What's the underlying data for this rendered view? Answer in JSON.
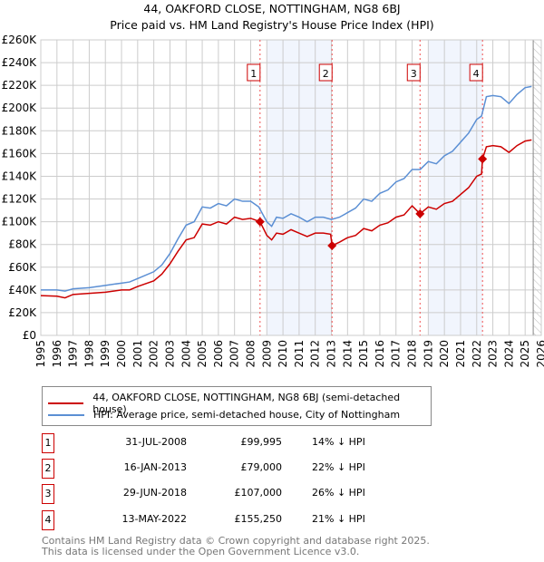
{
  "title": "44, OAKFORD CLOSE, NOTTINGHAM, NG8 6BJ",
  "subtitle": "Price paid vs. HM Land Registry's House Price Index (HPI)",
  "chart_data": {
    "type": "line",
    "xlim": [
      1995,
      2026
    ],
    "ylim": [
      0,
      260000
    ],
    "yticks": [
      0,
      20000,
      40000,
      60000,
      80000,
      100000,
      120000,
      140000,
      160000,
      180000,
      200000,
      220000,
      240000,
      260000
    ],
    "ytick_labels": [
      "£0",
      "£20K",
      "£40K",
      "£60K",
      "£80K",
      "£100K",
      "£120K",
      "£140K",
      "£160K",
      "£180K",
      "£200K",
      "£220K",
      "£240K",
      "£260K"
    ],
    "xticks": [
      1995,
      1996,
      1997,
      1998,
      1999,
      2000,
      2001,
      2002,
      2003,
      2004,
      2005,
      2006,
      2007,
      2008,
      2009,
      2010,
      2011,
      2012,
      2013,
      2014,
      2015,
      2016,
      2017,
      2018,
      2019,
      2020,
      2021,
      2022,
      2023,
      2024,
      2025,
      2026
    ],
    "grid": true,
    "shaded_periods": [
      [
        2009.0,
        2013.04
      ],
      [
        2019.0,
        2022.36
      ]
    ],
    "forecast_from": 2025.5,
    "series": [
      {
        "name": "44, OAKFORD CLOSE, NOTTINGHAM, NG8 6BJ (semi-detached house)",
        "color": "#cc0000",
        "x": [
          1995,
          1996,
          1996.5,
          1997,
          1998,
          1999,
          2000,
          2000.5,
          2001,
          2002,
          2002.5,
          2003,
          2003.5,
          2004,
          2004.5,
          2005,
          2005.5,
          2006,
          2006.5,
          2007,
          2007.5,
          2008,
          2008.58,
          2009,
          2009.3,
          2009.6,
          2010,
          2010.5,
          2011,
          2011.5,
          2012,
          2012.5,
          2012.95,
          2013.04,
          2013.5,
          2014,
          2014.5,
          2015,
          2015.5,
          2016,
          2016.5,
          2017,
          2017.5,
          2018,
          2018.49,
          2019,
          2019.5,
          2020,
          2020.5,
          2021,
          2021.5,
          2022,
          2022.3,
          2022.36,
          2022.6,
          2023,
          2023.5,
          2024,
          2024.5,
          2025,
          2025.4
        ],
        "y": [
          35000,
          34500,
          33000,
          36000,
          37000,
          38000,
          40000,
          40000,
          43000,
          48000,
          54000,
          63000,
          74000,
          84000,
          86000,
          98000,
          97000,
          100000,
          98000,
          104000,
          102000,
          103000,
          99995,
          88000,
          84000,
          90000,
          89000,
          93000,
          90000,
          87000,
          90000,
          90000,
          89000,
          79000,
          82000,
          86000,
          88000,
          94000,
          92000,
          97000,
          99000,
          104000,
          106000,
          114000,
          107000,
          113000,
          111000,
          116000,
          118000,
          124000,
          130000,
          140000,
          142000,
          155250,
          166000,
          167000,
          166000,
          161000,
          167000,
          171000,
          172000
        ]
      },
      {
        "name": "HPI: Average price, semi-detached house, City of Nottingham",
        "color": "#5b8fd4",
        "x": [
          1995,
          1996,
          1996.5,
          1997,
          1998,
          1999,
          2000,
          2000.5,
          2001,
          2002,
          2002.5,
          2003,
          2003.5,
          2004,
          2004.5,
          2005,
          2005.5,
          2006,
          2006.5,
          2007,
          2007.5,
          2008,
          2008.5,
          2009,
          2009.3,
          2009.6,
          2010,
          2010.5,
          2011,
          2011.5,
          2012,
          2012.5,
          2013,
          2013.5,
          2014,
          2014.5,
          2015,
          2015.5,
          2016,
          2016.5,
          2017,
          2017.5,
          2018,
          2018.5,
          2019,
          2019.5,
          2020,
          2020.5,
          2021,
          2021.5,
          2022,
          2022.3,
          2022.6,
          2023,
          2023.5,
          2024,
          2024.5,
          2025,
          2025.4
        ],
        "y": [
          40000,
          40000,
          39000,
          41000,
          42000,
          44000,
          46000,
          47000,
          50000,
          56000,
          62000,
          72000,
          85000,
          97000,
          100000,
          113000,
          112000,
          116000,
          114000,
          120000,
          118000,
          118000,
          113000,
          100000,
          96000,
          104000,
          103000,
          107000,
          104000,
          100000,
          104000,
          104000,
          102000,
          104000,
          108000,
          112000,
          120000,
          118000,
          125000,
          128000,
          135000,
          138000,
          146000,
          146000,
          153000,
          151000,
          158000,
          162000,
          170000,
          178000,
          190000,
          193000,
          210000,
          211000,
          210000,
          204000,
          212000,
          218000,
          219000
        ]
      }
    ],
    "sales": [
      {
        "label": "1",
        "x": 2008.58,
        "y": 99995
      },
      {
        "label": "2",
        "x": 2013.04,
        "y": 79000
      },
      {
        "label": "3",
        "x": 2018.49,
        "y": 107000
      },
      {
        "label": "4",
        "x": 2022.36,
        "y": 155250
      }
    ]
  },
  "legend": {
    "property": "44, OAKFORD CLOSE, NOTTINGHAM, NG8 6BJ (semi-detached house)",
    "hpi": "HPI: Average price, semi-detached house, City of Nottingham"
  },
  "transactions": [
    {
      "num": "1",
      "date": "31-JUL-2008",
      "price": "£99,995",
      "hpi": "14% ↓ HPI"
    },
    {
      "num": "2",
      "date": "16-JAN-2013",
      "price": "£79,000",
      "hpi": "22% ↓ HPI"
    },
    {
      "num": "3",
      "date": "29-JUN-2018",
      "price": "£107,000",
      "hpi": "26% ↓ HPI"
    },
    {
      "num": "4",
      "date": "13-MAY-2022",
      "price": "£155,250",
      "hpi": "21% ↓ HPI"
    }
  ],
  "footer": {
    "line1": "Contains HM Land Registry data © Crown copyright and database right 2025.",
    "line2": "This data is licensed under the Open Government Licence v3.0."
  }
}
